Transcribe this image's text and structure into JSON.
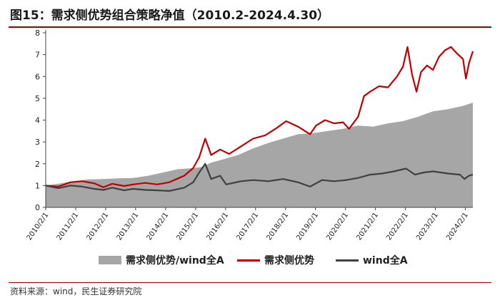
{
  "title": "图15：需求侧优势组合策略净值（2010.2-2024.4.30）",
  "source": "资料来源：wind，民生证券研究院",
  "colors": {
    "area": "#a6a6a6",
    "strategy": "#c00000",
    "benchmark": "#404040",
    "rule": "#a50000"
  },
  "chart_data": {
    "type": "line",
    "title": "",
    "xlabel": "",
    "ylabel": "",
    "ylim": [
      0,
      8
    ],
    "yticks": [
      0,
      1,
      2,
      3,
      4,
      5,
      6,
      7,
      8
    ],
    "xlim": [
      2010.08,
      2024.33
    ],
    "x_tick_labels": [
      "2010/2/1",
      "2011/2/1",
      "2012/2/1",
      "2013/2/1",
      "2014/2/1",
      "2015/2/1",
      "2016/2/1",
      "2017/2/1",
      "2018/2/1",
      "2019/2/1",
      "2020/2/1",
      "2021/2/1",
      "2022/2/1",
      "2023/2/1",
      "2024/2/1"
    ],
    "x_tick_values": [
      2010.08,
      2011.08,
      2012.08,
      2013.08,
      2014.08,
      2015.08,
      2016.08,
      2017.08,
      2018.08,
      2019.08,
      2020.08,
      2021.08,
      2022.08,
      2023.08,
      2024.08
    ],
    "grid": false,
    "legend_position": "bottom",
    "series": [
      {
        "name": "需求侧优势/wind全A",
        "kind": "area",
        "color": "#a6a6a6",
        "points": [
          [
            2010.08,
            1.0
          ],
          [
            2010.5,
            1.08
          ],
          [
            2011.0,
            1.2
          ],
          [
            2011.5,
            1.28
          ],
          [
            2012.0,
            1.3
          ],
          [
            2012.5,
            1.33
          ],
          [
            2013.0,
            1.35
          ],
          [
            2013.5,
            1.45
          ],
          [
            2014.0,
            1.6
          ],
          [
            2014.5,
            1.75
          ],
          [
            2015.0,
            1.8
          ],
          [
            2015.3,
            1.85
          ],
          [
            2015.6,
            2.05
          ],
          [
            2016.0,
            2.2
          ],
          [
            2016.5,
            2.4
          ],
          [
            2017.0,
            2.7
          ],
          [
            2017.5,
            2.95
          ],
          [
            2018.0,
            3.15
          ],
          [
            2018.5,
            3.35
          ],
          [
            2019.0,
            3.4
          ],
          [
            2019.5,
            3.5
          ],
          [
            2020.0,
            3.6
          ],
          [
            2020.5,
            3.75
          ],
          [
            2021.0,
            3.7
          ],
          [
            2021.5,
            3.85
          ],
          [
            2022.0,
            3.95
          ],
          [
            2022.5,
            4.15
          ],
          [
            2023.0,
            4.4
          ],
          [
            2023.5,
            4.5
          ],
          [
            2024.0,
            4.65
          ],
          [
            2024.33,
            4.8
          ]
        ]
      },
      {
        "name": "需求侧优势",
        "kind": "line",
        "color": "#c00000",
        "points": [
          [
            2010.08,
            1.0
          ],
          [
            2010.5,
            0.95
          ],
          [
            2010.9,
            1.15
          ],
          [
            2011.3,
            1.2
          ],
          [
            2011.7,
            1.1
          ],
          [
            2012.0,
            0.92
          ],
          [
            2012.3,
            1.08
          ],
          [
            2012.7,
            0.98
          ],
          [
            2013.0,
            1.05
          ],
          [
            2013.4,
            1.12
          ],
          [
            2013.8,
            1.05
          ],
          [
            2014.2,
            1.15
          ],
          [
            2014.7,
            1.45
          ],
          [
            2015.0,
            1.8
          ],
          [
            2015.2,
            2.3
          ],
          [
            2015.4,
            3.15
          ],
          [
            2015.6,
            2.4
          ],
          [
            2015.9,
            2.65
          ],
          [
            2016.2,
            2.45
          ],
          [
            2016.6,
            2.8
          ],
          [
            2017.0,
            3.15
          ],
          [
            2017.4,
            3.3
          ],
          [
            2017.8,
            3.65
          ],
          [
            2018.1,
            3.95
          ],
          [
            2018.5,
            3.7
          ],
          [
            2018.9,
            3.35
          ],
          [
            2019.1,
            3.75
          ],
          [
            2019.4,
            4.0
          ],
          [
            2019.7,
            3.85
          ],
          [
            2020.0,
            3.9
          ],
          [
            2020.2,
            3.6
          ],
          [
            2020.5,
            4.15
          ],
          [
            2020.7,
            5.1
          ],
          [
            2020.9,
            5.3
          ],
          [
            2021.2,
            5.55
          ],
          [
            2021.5,
            5.5
          ],
          [
            2021.8,
            6.0
          ],
          [
            2022.0,
            6.45
          ],
          [
            2022.15,
            7.35
          ],
          [
            2022.3,
            6.1
          ],
          [
            2022.45,
            5.3
          ],
          [
            2022.6,
            6.2
          ],
          [
            2022.8,
            6.5
          ],
          [
            2023.0,
            6.3
          ],
          [
            2023.2,
            6.9
          ],
          [
            2023.4,
            7.2
          ],
          [
            2023.6,
            7.35
          ],
          [
            2023.8,
            7.05
          ],
          [
            2024.0,
            6.8
          ],
          [
            2024.1,
            5.9
          ],
          [
            2024.2,
            6.6
          ],
          [
            2024.33,
            7.15
          ]
        ]
      },
      {
        "name": "wind全A",
        "kind": "line",
        "color": "#404040",
        "points": [
          [
            2010.08,
            1.0
          ],
          [
            2010.5,
            0.88
          ],
          [
            2010.9,
            1.0
          ],
          [
            2011.3,
            0.95
          ],
          [
            2011.7,
            0.85
          ],
          [
            2012.0,
            0.8
          ],
          [
            2012.3,
            0.9
          ],
          [
            2012.7,
            0.78
          ],
          [
            2013.0,
            0.85
          ],
          [
            2013.4,
            0.8
          ],
          [
            2013.8,
            0.78
          ],
          [
            2014.2,
            0.75
          ],
          [
            2014.7,
            0.9
          ],
          [
            2015.0,
            1.15
          ],
          [
            2015.2,
            1.6
          ],
          [
            2015.4,
            2.0
          ],
          [
            2015.6,
            1.3
          ],
          [
            2015.9,
            1.45
          ],
          [
            2016.1,
            1.05
          ],
          [
            2016.6,
            1.2
          ],
          [
            2017.0,
            1.25
          ],
          [
            2017.5,
            1.2
          ],
          [
            2018.0,
            1.3
          ],
          [
            2018.5,
            1.15
          ],
          [
            2018.9,
            0.95
          ],
          [
            2019.3,
            1.25
          ],
          [
            2019.7,
            1.2
          ],
          [
            2020.1,
            1.25
          ],
          [
            2020.5,
            1.35
          ],
          [
            2020.9,
            1.5
          ],
          [
            2021.3,
            1.55
          ],
          [
            2021.7,
            1.65
          ],
          [
            2022.1,
            1.78
          ],
          [
            2022.4,
            1.5
          ],
          [
            2022.7,
            1.6
          ],
          [
            2023.0,
            1.65
          ],
          [
            2023.5,
            1.55
          ],
          [
            2023.9,
            1.5
          ],
          [
            2024.05,
            1.3
          ],
          [
            2024.2,
            1.45
          ],
          [
            2024.33,
            1.5
          ]
        ]
      }
    ]
  }
}
